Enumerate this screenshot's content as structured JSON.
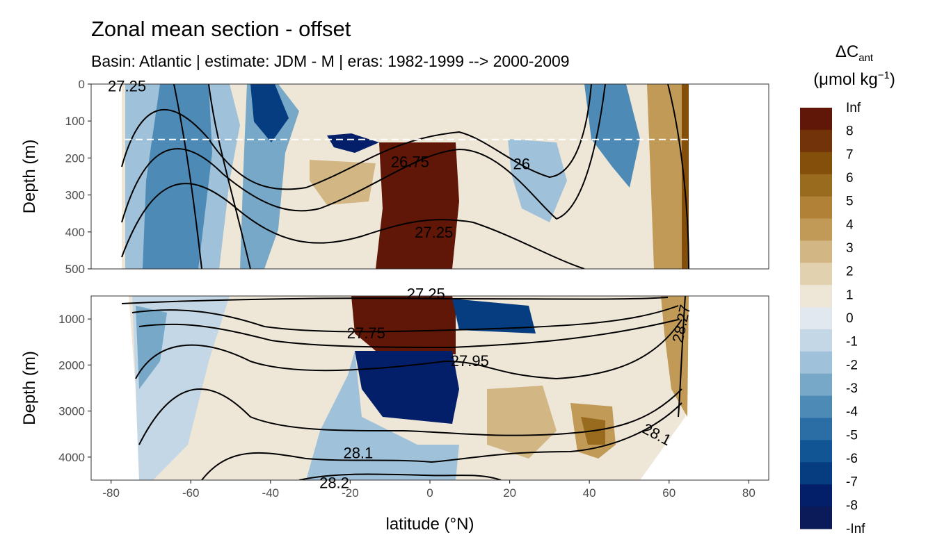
{
  "chart_data": {
    "type": "heatmap",
    "title": "Zonal mean section - offset",
    "subtitle": "Basin: Atlantic | estimate: JDM - M | eras: 1982-1999 --> 2000-2009",
    "xlabel": "latitude (°N)",
    "ylabel": "Depth (m)",
    "xlim": [
      -85,
      85
    ],
    "x_ticks": [
      -80,
      -60,
      -40,
      -20,
      0,
      20,
      40,
      60,
      80
    ],
    "reference_depth_line": 150,
    "panels": [
      {
        "name": "upper",
        "ylim": [
          0,
          500
        ],
        "y_ticks": [
          0,
          100,
          200,
          300,
          400,
          500
        ],
        "contour_labels": [
          {
            "text": "27.25",
            "lat": -76,
            "depth": 5
          },
          {
            "text": "26.75",
            "lat": -5,
            "depth": 210
          },
          {
            "text": "26",
            "lat": 23,
            "depth": 215
          },
          {
            "text": "27.25",
            "lat": 1,
            "depth": 400
          }
        ]
      },
      {
        "name": "lower",
        "ylim": [
          500,
          4500
        ],
        "y_ticks": [
          1000,
          2000,
          3000,
          4000
        ],
        "contour_labels": [
          {
            "text": "27.25",
            "lat": -1,
            "depth": 450
          },
          {
            "text": "27.75",
            "lat": -16,
            "depth": 1300
          },
          {
            "text": "27.95",
            "lat": 10,
            "depth": 1900
          },
          {
            "text": "28.1",
            "lat": -18,
            "depth": 3900
          },
          {
            "text": "28.2",
            "lat": -24,
            "depth": 4550
          },
          {
            "text": "28.1",
            "lat": 57,
            "depth": 3500
          },
          {
            "text": "28.27",
            "lat": 63,
            "depth": 1100
          }
        ]
      }
    ],
    "legend": {
      "title_main": "ΔC",
      "title_sub": "ant",
      "unit_open": "(μmol kg",
      "unit_sup": "−1",
      "unit_close": ")",
      "labels": [
        "Inf",
        "8",
        "7",
        "6",
        "5",
        "4",
        "3",
        "2",
        "1",
        "0",
        "-1",
        "-2",
        "-3",
        "-4",
        "-5",
        "-6",
        "-7",
        "-8",
        "-Inf"
      ],
      "colors": [
        "#611707",
        "#733308",
        "#844f0b",
        "#996b1f",
        "#b08136",
        "#c09a56",
        "#d2b683",
        "#e2d1ae",
        "#eee6d7",
        "#e1e8ee",
        "#c3d7e6",
        "#9fc1d9",
        "#77a8c8",
        "#4e8ab6",
        "#2a6ea5",
        "#115595",
        "#063d80",
        "#041f69",
        "#0b1a59"
      ]
    }
  }
}
